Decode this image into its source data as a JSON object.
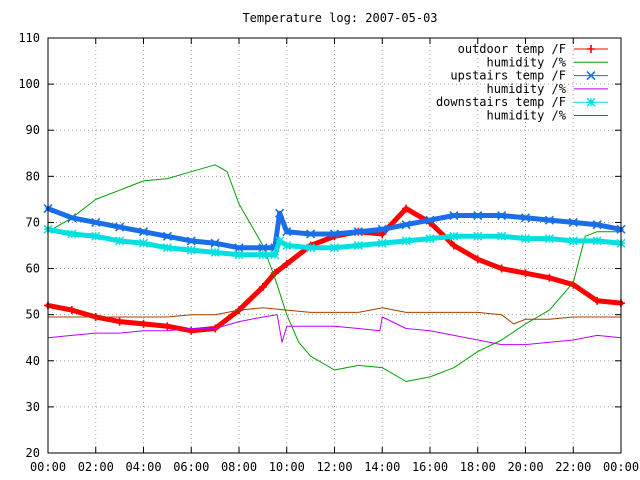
{
  "chart_data": {
    "type": "line",
    "title": "Temperature log: 2007-05-03",
    "xlabel": "",
    "ylabel": "",
    "x_ticks": [
      "00:00",
      "02:00",
      "04:00",
      "06:00",
      "08:00",
      "10:00",
      "12:00",
      "14:00",
      "16:00",
      "18:00",
      "20:00",
      "22:00",
      "00:00"
    ],
    "x_range_hours": [
      0,
      24
    ],
    "ylim": [
      20,
      110
    ],
    "y_ticks": [
      20,
      30,
      40,
      50,
      60,
      70,
      80,
      90,
      100,
      110
    ],
    "grid": true,
    "legend_position": "top-right",
    "series": [
      {
        "name": "outdoor temp /F",
        "color": "#ff0000",
        "marker": "plus",
        "x": [
          0,
          1,
          2,
          3,
          4,
          5,
          6,
          7,
          8,
          9,
          9.5,
          10,
          11,
          12,
          13,
          14,
          15,
          16,
          17,
          18,
          19,
          20,
          21,
          22,
          23,
          24
        ],
        "y": [
          52,
          51,
          49.5,
          48.5,
          48,
          47.5,
          46.5,
          47,
          51,
          56,
          59,
          61,
          65,
          67,
          68,
          67.5,
          73,
          70,
          65,
          62,
          60,
          59,
          58,
          56.5,
          53,
          52.5
        ]
      },
      {
        "name": "humidity /%",
        "color": "#00a000",
        "marker": "none",
        "x": [
          0,
          1,
          2,
          3,
          4,
          5,
          6,
          7,
          7.5,
          8,
          9,
          9.5,
          10,
          10.5,
          11,
          12,
          13,
          14,
          15,
          16,
          17,
          18,
          19,
          20,
          21,
          22,
          22.5,
          23,
          24
        ],
        "y": [
          68,
          71,
          75,
          77,
          79,
          79.5,
          81,
          82.5,
          81,
          74,
          65,
          58,
          50,
          44,
          41,
          38,
          39,
          38.5,
          35.5,
          36.5,
          38.5,
          42,
          44.5,
          48,
          51,
          57,
          67,
          68,
          68
        ]
      },
      {
        "name": "upstairs temp /F",
        "color": "#1a6ee8",
        "marker": "x",
        "x": [
          0,
          1,
          2,
          3,
          4,
          5,
          6,
          7,
          8,
          9,
          9.5,
          9.7,
          10,
          11,
          12,
          13,
          14,
          15,
          16,
          17,
          18,
          19,
          20,
          21,
          22,
          23,
          24
        ],
        "y": [
          73,
          71,
          70,
          69,
          68,
          67,
          66,
          65.5,
          64.5,
          64.5,
          64.5,
          72,
          68,
          67.5,
          67.5,
          68,
          68.5,
          69.5,
          70.5,
          71.5,
          71.5,
          71.5,
          71,
          70.5,
          70,
          69.5,
          68.5
        ]
      },
      {
        "name": "humidity /%",
        "color": "#c000ff",
        "marker": "none",
        "x": [
          0,
          1,
          2,
          3,
          4,
          5,
          6,
          7,
          8,
          9,
          9.6,
          9.8,
          10,
          11,
          12,
          13,
          13.9,
          14,
          15,
          16,
          17,
          18,
          19,
          20,
          21,
          22,
          23,
          24
        ],
        "y": [
          45,
          45.5,
          46,
          46,
          46.5,
          46.5,
          47,
          47,
          48.5,
          49.5,
          50,
          44,
          47.5,
          47.5,
          47.5,
          47,
          46.5,
          49.5,
          47,
          46.5,
          45.5,
          44.5,
          43.5,
          43.5,
          44,
          44.5,
          45.5,
          45
        ]
      },
      {
        "name": "downstairs temp /F",
        "color": "#00e0e0",
        "marker": "star",
        "x": [
          0,
          1,
          2,
          3,
          4,
          5,
          6,
          7,
          8,
          9,
          9.5,
          9.7,
          10,
          11,
          12,
          13,
          14,
          15,
          16,
          17,
          18,
          19,
          20,
          21,
          22,
          23,
          24
        ],
        "y": [
          68.5,
          67.5,
          67,
          66,
          65.5,
          64.5,
          64,
          63.5,
          63,
          63,
          63,
          66,
          65,
          64.5,
          64.5,
          65,
          65.5,
          66,
          66.5,
          67,
          67,
          67,
          66.5,
          66.5,
          66,
          66,
          65.5
        ]
      },
      {
        "name": "humidity /%",
        "color": "#a04000",
        "marker": "none",
        "x": [
          0,
          1,
          2,
          3,
          4,
          5,
          6,
          7,
          8,
          9,
          10,
          11,
          12,
          13,
          14,
          15,
          16,
          17,
          18,
          19,
          19.5,
          20,
          21,
          22,
          23,
          24
        ],
        "y": [
          49.5,
          49.5,
          49.5,
          49.5,
          49.5,
          49.5,
          50,
          50,
          51,
          51.5,
          51,
          50.5,
          50.5,
          50.5,
          51.5,
          50.5,
          50.5,
          50.5,
          50.5,
          50,
          48,
          49,
          49,
          49.5,
          49.5,
          49.5
        ]
      }
    ]
  }
}
